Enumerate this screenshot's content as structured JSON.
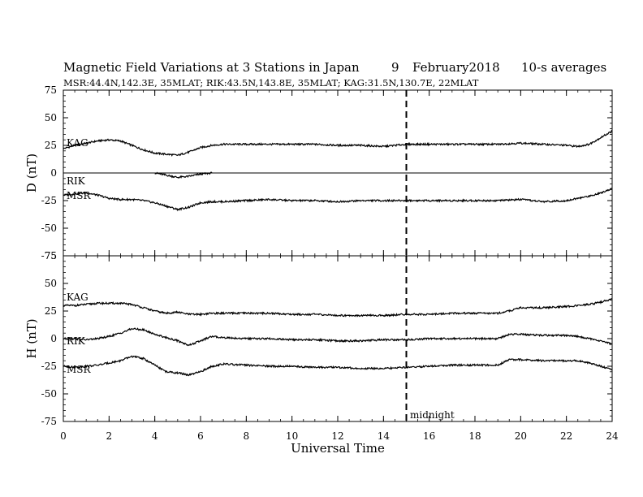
{
  "header": {
    "title": "Magnetic Field Variations at 3 Stations in Japan",
    "day": "9",
    "date": "February2018",
    "averaging": "10-s averages",
    "stations": "MSR:44.4N,142.3E, 35MLAT;  RIK:43.5N,143.8E, 35MLAT;  KAG:31.5N,130.7E, 22MLAT"
  },
  "x_axis_title": "Universal Time",
  "midnight_label": "midnight",
  "chart_data": [
    {
      "type": "line",
      "panel": "top",
      "ylabel": "D (nT)",
      "xlim": [
        0,
        24
      ],
      "ylim": [
        -75,
        75
      ],
      "x_ticks": [
        0,
        2,
        4,
        6,
        8,
        10,
        12,
        14,
        16,
        18,
        20,
        22,
        24
      ],
      "y_ticks": [
        75,
        50,
        25,
        0,
        -25,
        -50,
        -75
      ],
      "zero_line": true,
      "vertical_marker": {
        "x": 15,
        "style": "dashed",
        "label": "midnight"
      },
      "series": [
        {
          "name": "KAG",
          "x": [
            0,
            0.5,
            1,
            1.5,
            2,
            2.5,
            3,
            3.5,
            4,
            4.5,
            5,
            5.5,
            6,
            6.5,
            7,
            8,
            9,
            10,
            11,
            12,
            13,
            14,
            15,
            16,
            17,
            18,
            19,
            20,
            21,
            22,
            22.5,
            23,
            23.5,
            24
          ],
          "y": [
            22,
            25,
            27,
            29,
            30,
            29,
            25,
            21,
            18,
            17,
            16,
            19,
            23,
            25,
            26,
            26,
            26,
            26,
            26,
            25,
            25,
            24,
            26,
            26,
            26,
            26,
            26,
            27,
            26,
            25,
            24,
            26,
            32,
            38
          ]
        },
        {
          "name": "RIK",
          "x": [
            4,
            4.5,
            5,
            5.5,
            6,
            6.5
          ],
          "y": [
            0,
            -2,
            -4,
            -3,
            -1,
            0
          ]
        },
        {
          "name": "MSR",
          "x": [
            0,
            0.5,
            1,
            1.5,
            2,
            2.5,
            3,
            3.5,
            4,
            4.5,
            5,
            5.5,
            6,
            6.5,
            7,
            8,
            9,
            10,
            11,
            12,
            13,
            14,
            15,
            16,
            17,
            18,
            19,
            20,
            21,
            22,
            22.5,
            23,
            23.5,
            24
          ],
          "y": [
            -20,
            -19,
            -18,
            -20,
            -23,
            -24,
            -24,
            -25,
            -27,
            -30,
            -33,
            -31,
            -27,
            -26,
            -26,
            -25,
            -24,
            -25,
            -25,
            -26,
            -25,
            -25,
            -25,
            -25,
            -25,
            -25,
            -25,
            -24,
            -26,
            -25,
            -23,
            -21,
            -18,
            -14
          ]
        }
      ]
    },
    {
      "type": "line",
      "panel": "bottom",
      "ylabel": "H (nT)",
      "xlim": [
        0,
        24
      ],
      "ylim": [
        -75,
        75
      ],
      "x_ticks": [
        0,
        2,
        4,
        6,
        8,
        10,
        12,
        14,
        16,
        18,
        20,
        22,
        24
      ],
      "y_ticks": [
        75,
        50,
        25,
        0,
        -25,
        -50,
        -75
      ],
      "zero_line": false,
      "vertical_marker": {
        "x": 15,
        "style": "dashed",
        "label": "midnight"
      },
      "series": [
        {
          "name": "KAG",
          "x": [
            0,
            0.5,
            1,
            1.5,
            2,
            2.5,
            3,
            3.5,
            4,
            4.5,
            5,
            5.5,
            6,
            6.5,
            7,
            8,
            9,
            10,
            11,
            12,
            13,
            14,
            15,
            16,
            17,
            18,
            19,
            19.5,
            20,
            21,
            22,
            22.5,
            23,
            23.5,
            24
          ],
          "y": [
            30,
            30,
            31,
            32,
            32,
            32,
            31,
            28,
            25,
            23,
            24,
            22,
            22,
            23,
            23,
            23,
            23,
            22,
            22,
            21,
            21,
            21,
            22,
            22,
            23,
            23,
            23,
            25,
            28,
            28,
            29,
            30,
            31,
            33,
            36
          ]
        },
        {
          "name": "RIK",
          "x": [
            0,
            0.5,
            1,
            1.5,
            2,
            2.5,
            3,
            3.5,
            4,
            4.5,
            5,
            5.5,
            6,
            6.5,
            7,
            8,
            9,
            10,
            11,
            12,
            13,
            14,
            15,
            16,
            17,
            18,
            19,
            19.5,
            20,
            21,
            22,
            22.5,
            23,
            23.5,
            24
          ],
          "y": [
            0,
            0,
            -1,
            0,
            2,
            5,
            9,
            8,
            4,
            1,
            -2,
            -6,
            -2,
            2,
            1,
            0,
            0,
            -1,
            -1,
            -2,
            -2,
            -1,
            -1,
            0,
            0,
            0,
            0,
            4,
            4,
            3,
            3,
            2,
            0,
            -2,
            -5
          ]
        },
        {
          "name": "MSR",
          "x": [
            0,
            0.5,
            1,
            1.5,
            2,
            2.5,
            3,
            3.5,
            4,
            4.5,
            5,
            5.5,
            6,
            6.5,
            7,
            8,
            9,
            10,
            11,
            12,
            13,
            14,
            15,
            16,
            17,
            18,
            19,
            19.5,
            20,
            21,
            22,
            22.5,
            23,
            23.5,
            24
          ],
          "y": [
            -25,
            -26,
            -25,
            -24,
            -22,
            -20,
            -16,
            -18,
            -24,
            -30,
            -31,
            -33,
            -30,
            -25,
            -23,
            -24,
            -25,
            -25,
            -26,
            -26,
            -27,
            -27,
            -26,
            -25,
            -24,
            -24,
            -24,
            -19,
            -19,
            -20,
            -20,
            -20,
            -22,
            -25,
            -28
          ]
        }
      ]
    }
  ]
}
